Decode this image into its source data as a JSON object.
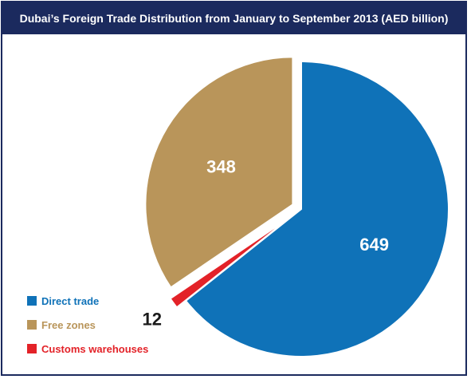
{
  "title": "Dubai’s Foreign Trade Distribution from January to September 2013 (AED billion)",
  "chart_data": {
    "type": "pie",
    "title": "Dubai’s Foreign Trade Distribution from January to September 2013 (AED billion)",
    "slices": [
      {
        "label": "Direct trade",
        "value": 649,
        "color": "#0f72b8",
        "label_color": "#ffffff"
      },
      {
        "label": "Customs warehouses",
        "value": 12,
        "color": "#e32228",
        "label_color": "#1a1a1a"
      },
      {
        "label": "Free zones",
        "value": 348,
        "color": "#b9955a",
        "label_color": "#ffffff"
      }
    ],
    "legend": {
      "placement": "bottom-left",
      "items": [
        {
          "label": "Direct trade",
          "color": "#0f72b8"
        },
        {
          "label": "Free zones",
          "color": "#b9955a"
        },
        {
          "label": "Customs warehouses",
          "color": "#e32228"
        }
      ]
    }
  }
}
